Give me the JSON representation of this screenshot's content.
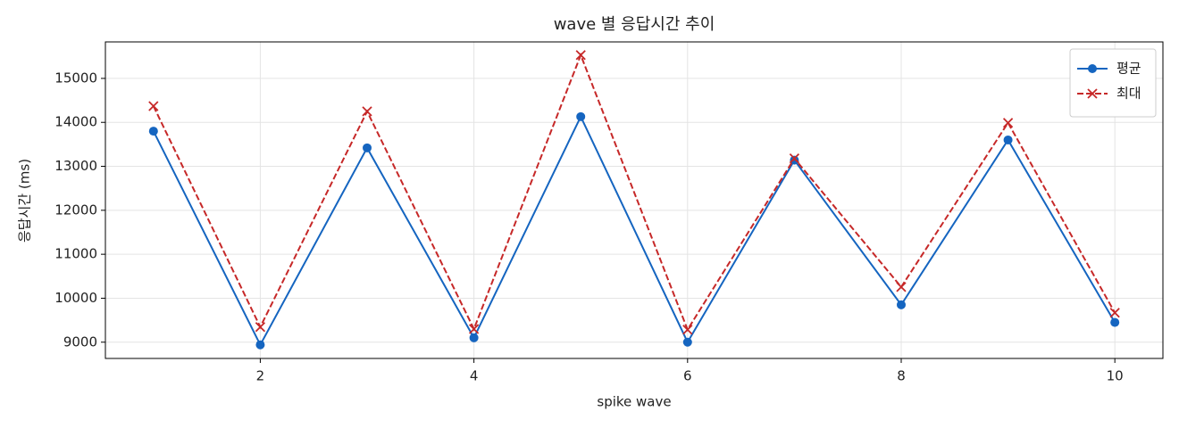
{
  "chart_data": {
    "type": "line",
    "title": "wave 별 응답시간 추이",
    "x_label": "spike wave",
    "y_label": "응답시간 (ms)",
    "x": [
      1,
      2,
      3,
      4,
      5,
      6,
      7,
      8,
      9,
      10
    ],
    "series": [
      {
        "name": "평균",
        "color": "#1565c0",
        "marker": "circle",
        "dash": "solid",
        "values": [
          13800,
          8940,
          13420,
          9100,
          14130,
          9000,
          13140,
          9850,
          13600,
          9450
        ]
      },
      {
        "name": "최대",
        "color": "#c62828",
        "marker": "x",
        "dash": "dashed",
        "values": [
          14370,
          9345,
          14250,
          9300,
          15530,
          9285,
          13180,
          10255,
          13990,
          9670
        ]
      }
    ],
    "xlim": [
      0.55,
      10.45
    ],
    "xticks": [
      2,
      4,
      6,
      8,
      10
    ],
    "ylim": [
      8630,
      15830
    ],
    "yticks": [
      9000,
      10000,
      11000,
      12000,
      13000,
      14000,
      15000
    ],
    "grid": true,
    "legend": "upper right"
  }
}
